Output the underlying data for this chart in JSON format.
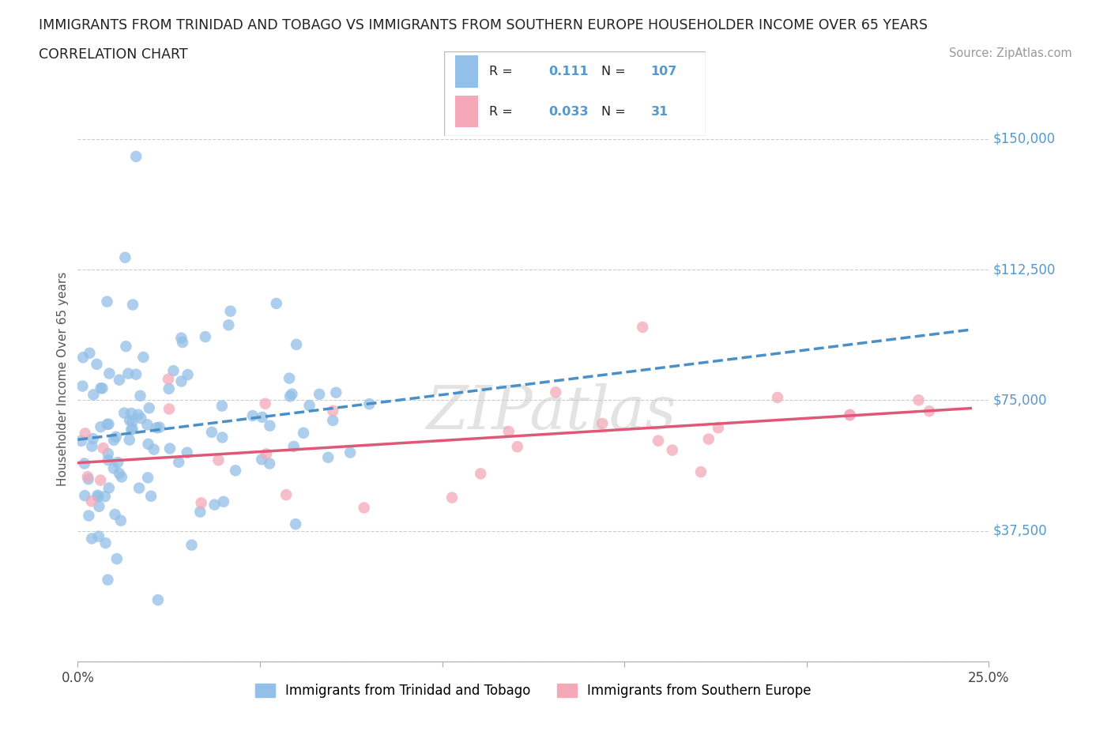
{
  "title_line1": "IMMIGRANTS FROM TRINIDAD AND TOBAGO VS IMMIGRANTS FROM SOUTHERN EUROPE HOUSEHOLDER INCOME OVER 65 YEARS",
  "title_line2": "CORRELATION CHART",
  "source_text": "Source: ZipAtlas.com",
  "watermark": "ZIPatlas",
  "ylabel": "Householder Income Over 65 years",
  "xlim": [
    0.0,
    0.25
  ],
  "ylim": [
    0,
    162500
  ],
  "grid_color": "#cccccc",
  "blue_color": "#92c0e8",
  "pink_color": "#f4a8b8",
  "blue_line_color": "#4a90c8",
  "pink_line_color": "#e05878",
  "ytick_color": "#5599cc",
  "R_blue": 0.111,
  "N_blue": 107,
  "R_pink": 0.033,
  "N_pink": 31,
  "legend_label_blue": "Immigrants from Trinidad and Tobago",
  "legend_label_pink": "Immigrants from Southern Europe"
}
